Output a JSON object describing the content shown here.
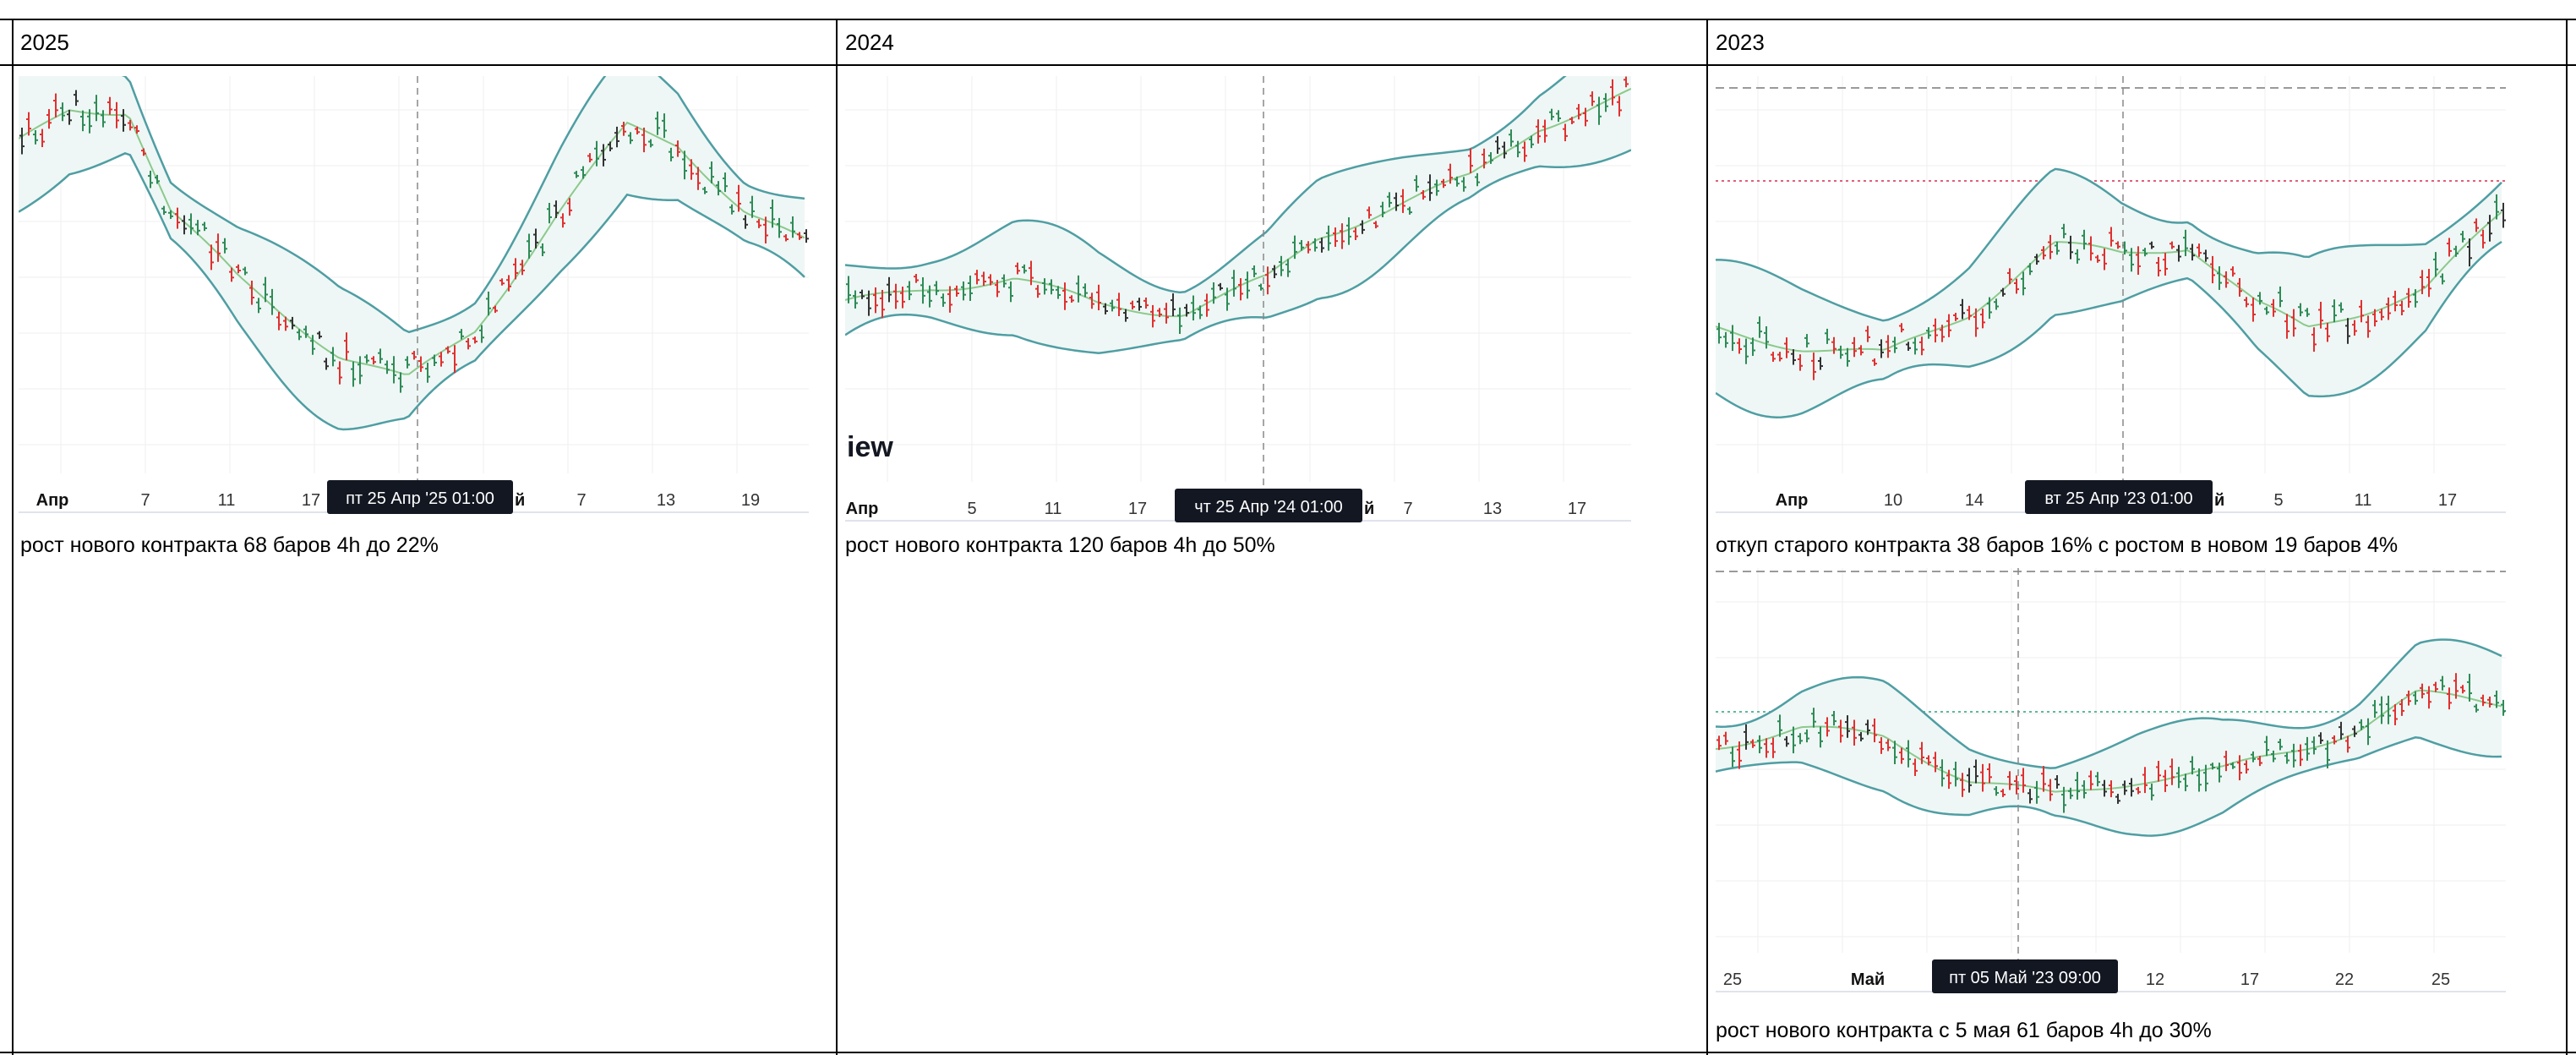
{
  "headers": [
    "2025",
    "2024",
    "2023"
  ],
  "watermark": "iew",
  "colors": {
    "band_fill": "#eef7f5",
    "band_line": "#4f9ea3",
    "basis_line": "#8cc98c",
    "bar_up": "#2e8b57",
    "bar_down": "#e03030",
    "bar_neutral": "#333333",
    "grid": "#efefef",
    "crosshair": "#888888",
    "level_red": "#e0607a",
    "level_green": "#5fb8a0",
    "level_gray": "#9a9a9a",
    "tooltip_bg": "#131722"
  },
  "panels": [
    {
      "id": "p2025",
      "ticks": [
        "Апр",
        "7",
        "11",
        "17",
        "й",
        "7",
        "13",
        "19"
      ],
      "bold_tick": "Апр",
      "tooltip": "пт 25 Апр '25   01:00",
      "caption": "рост нового контракта 68 баров 4h до 22%"
    },
    {
      "id": "p2024",
      "ticks": [
        "Апр",
        "5",
        "11",
        "17",
        "й",
        "7",
        "13",
        "17"
      ],
      "bold_tick": "Апр",
      "tooltip": "чт 25 Апр '24   01:00",
      "caption": "рост нового контракта 120 баров 4h до 50%"
    },
    {
      "id": "p2023a",
      "ticks": [
        "Апр",
        "10",
        "14",
        "й",
        "5",
        "11",
        "17"
      ],
      "bold_tick": "Апр",
      "tooltip": "вт 25 Апр '23   01:00",
      "caption": "откуп старого контракта 38 баров 16% с ростом в новом 19 баров 4%"
    },
    {
      "id": "p2023b",
      "ticks": [
        "25",
        "Май",
        "12",
        "17",
        "22",
        "25"
      ],
      "bold_tick": "Май",
      "tooltip": "пт 05 Май '23   09:00",
      "caption": "рост нового контракта с 5 мая 61 баров 4h до 30%"
    }
  ]
}
